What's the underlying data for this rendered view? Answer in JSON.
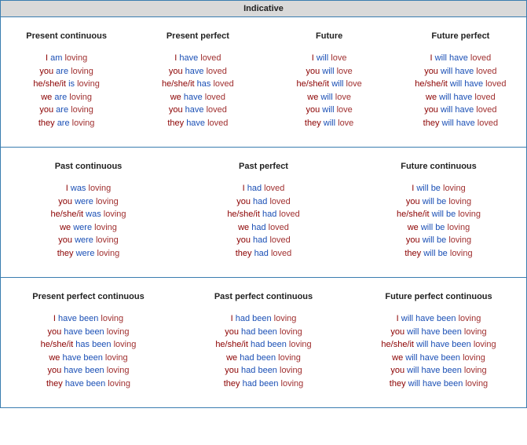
{
  "header": "Indicative",
  "colors": {
    "pronoun": "#8b0000",
    "auxiliary": "#1a4fb5",
    "verb_suffix": "#a03030",
    "border": "#3a7db0",
    "header_bg": "#d9d9d9",
    "title_text": "#222222"
  },
  "typography": {
    "font_family": "Verdana, Arial, sans-serif",
    "font_size_pt": 8,
    "title_weight": "bold"
  },
  "pronouns": [
    "I",
    "you",
    "he/she/it",
    "we",
    "you",
    "they"
  ],
  "sections": [
    {
      "cols": 4,
      "tenses": [
        "present_continuous",
        "present_perfect",
        "future",
        "future_perfect"
      ]
    },
    {
      "cols": 3,
      "tenses": [
        "past_continuous",
        "past_perfect",
        "future_continuous"
      ]
    },
    {
      "cols": 3,
      "tenses": [
        "present_perfect_continuous",
        "past_perfect_continuous",
        "future_perfect_continuous"
      ]
    }
  ],
  "tenses": {
    "present_continuous": {
      "title": "Present continuous",
      "forms": [
        {
          "aux": "am",
          "verb": "loving"
        },
        {
          "aux": "are",
          "verb": "loving"
        },
        {
          "aux": "is",
          "verb": "loving"
        },
        {
          "aux": "are",
          "verb": "loving"
        },
        {
          "aux": "are",
          "verb": "loving"
        },
        {
          "aux": "are",
          "verb": "loving"
        }
      ]
    },
    "present_perfect": {
      "title": "Present perfect",
      "forms": [
        {
          "aux": "have",
          "verb": "loved"
        },
        {
          "aux": "have",
          "verb": "loved"
        },
        {
          "aux": "has",
          "verb": "loved"
        },
        {
          "aux": "have",
          "verb": "loved"
        },
        {
          "aux": "have",
          "verb": "loved"
        },
        {
          "aux": "have",
          "verb": "loved"
        }
      ]
    },
    "future": {
      "title": "Future",
      "forms": [
        {
          "aux": "will",
          "verb": "love"
        },
        {
          "aux": "will",
          "verb": "love"
        },
        {
          "aux": "will",
          "verb": "love"
        },
        {
          "aux": "will",
          "verb": "love"
        },
        {
          "aux": "will",
          "verb": "love"
        },
        {
          "aux": "will",
          "verb": "love"
        }
      ]
    },
    "future_perfect": {
      "title": "Future perfect",
      "forms": [
        {
          "aux": "will have",
          "verb": "loved"
        },
        {
          "aux": "will have",
          "verb": "loved"
        },
        {
          "aux": "will have",
          "verb": "loved"
        },
        {
          "aux": "will have",
          "verb": "loved"
        },
        {
          "aux": "will have",
          "verb": "loved"
        },
        {
          "aux": "will have",
          "verb": "loved"
        }
      ]
    },
    "past_continuous": {
      "title": "Past continuous",
      "forms": [
        {
          "aux": "was",
          "verb": "loving"
        },
        {
          "aux": "were",
          "verb": "loving"
        },
        {
          "aux": "was",
          "verb": "loving"
        },
        {
          "aux": "were",
          "verb": "loving"
        },
        {
          "aux": "were",
          "verb": "loving"
        },
        {
          "aux": "were",
          "verb": "loving"
        }
      ]
    },
    "past_perfect": {
      "title": "Past perfect",
      "forms": [
        {
          "aux": "had",
          "verb": "loved"
        },
        {
          "aux": "had",
          "verb": "loved"
        },
        {
          "aux": "had",
          "verb": "loved"
        },
        {
          "aux": "had",
          "verb": "loved"
        },
        {
          "aux": "had",
          "verb": "loved"
        },
        {
          "aux": "had",
          "verb": "loved"
        }
      ]
    },
    "future_continuous": {
      "title": "Future continuous",
      "forms": [
        {
          "aux": "will be",
          "verb": "loving"
        },
        {
          "aux": "will be",
          "verb": "loving"
        },
        {
          "aux": "will be",
          "verb": "loving"
        },
        {
          "aux": "will be",
          "verb": "loving"
        },
        {
          "aux": "will be",
          "verb": "loving"
        },
        {
          "aux": "will be",
          "verb": "loving"
        }
      ]
    },
    "present_perfect_continuous": {
      "title": "Present perfect continuous",
      "forms": [
        {
          "aux": "have been",
          "verb": "loving"
        },
        {
          "aux": "have been",
          "verb": "loving"
        },
        {
          "aux": "has been",
          "verb": "loving"
        },
        {
          "aux": "have been",
          "verb": "loving"
        },
        {
          "aux": "have been",
          "verb": "loving"
        },
        {
          "aux": "have been",
          "verb": "loving"
        }
      ]
    },
    "past_perfect_continuous": {
      "title": "Past perfect continuous",
      "forms": [
        {
          "aux": "had been",
          "verb": "loving"
        },
        {
          "aux": "had been",
          "verb": "loving"
        },
        {
          "aux": "had been",
          "verb": "loving"
        },
        {
          "aux": "had been",
          "verb": "loving"
        },
        {
          "aux": "had been",
          "verb": "loving"
        },
        {
          "aux": "had been",
          "verb": "loving"
        }
      ]
    },
    "future_perfect_continuous": {
      "title": "Future perfect continuous",
      "forms": [
        {
          "aux": "will have been",
          "verb": "loving"
        },
        {
          "aux": "will have been",
          "verb": "loving"
        },
        {
          "aux": "will have been",
          "verb": "loving"
        },
        {
          "aux": "will have been",
          "verb": "loving"
        },
        {
          "aux": "will have been",
          "verb": "loving"
        },
        {
          "aux": "will have been",
          "verb": "loving"
        }
      ]
    }
  }
}
